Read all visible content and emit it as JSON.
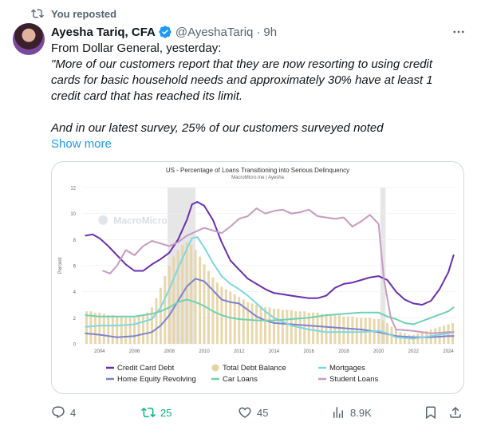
{
  "repost_banner": {
    "text": "You reposted"
  },
  "author": {
    "name": "Ayesha Tariq, CFA",
    "handle": "@AyeshaTariq",
    "separator": "·",
    "time": "9h"
  },
  "post": {
    "line1": "From Dollar General, yesterday:",
    "quote_lines": [
      "\"More of our customers report that they are now resorting to using credit",
      "cards for basic household needs and approximately 30% have at least 1",
      "credit card that has reached its limit."
    ],
    "quote_line_2": "And in our latest survey, 25% of our customers surveyed noted",
    "show_more": "Show more"
  },
  "chart_data": {
    "type": "line",
    "title": "US - Percentage of Loans Transitioning into Serious Delinquency",
    "subtitle": "MacroMicro.me | Ayesha",
    "watermark": "MacroMicro",
    "ylabel": "Percent",
    "ylim": [
      0,
      12
    ],
    "yticks": [
      "0",
      "2",
      "4",
      "6",
      "8",
      "10",
      "12"
    ],
    "xlim": [
      2003,
      2024.5
    ],
    "xticks": [
      "2004",
      "2006",
      "2008",
      "2010",
      "2012",
      "2014",
      "2016",
      "2018",
      "2020",
      "2022",
      "2024"
    ],
    "recessions": [
      [
        2007.9,
        2009.5
      ],
      [
        2020.1,
        2020.4
      ]
    ],
    "series": [
      {
        "name": "Credit Card Debt",
        "color": "#6a2fae",
        "x": [
          2003.2,
          2003.6,
          2004,
          2004.5,
          2005,
          2005.5,
          2006,
          2006.5,
          2007,
          2007.5,
          2008,
          2008.5,
          2009,
          2009.3,
          2009.6,
          2010,
          2010.5,
          2011,
          2011.5,
          2012,
          2012.5,
          2013,
          2013.5,
          2014,
          2014.5,
          2015,
          2015.5,
          2016,
          2016.5,
          2017,
          2017.5,
          2018,
          2018.5,
          2019,
          2019.5,
          2020,
          2020.5,
          2021,
          2021.5,
          2022,
          2022.5,
          2023,
          2023.5,
          2024,
          2024.3
        ],
        "y": [
          8.3,
          8.4,
          8.1,
          7.5,
          6.8,
          6.1,
          5.6,
          5.6,
          6.1,
          6.5,
          7.0,
          8.0,
          9.5,
          10.7,
          10.9,
          10.6,
          9.5,
          7.8,
          6.4,
          5.7,
          5.0,
          4.6,
          4.2,
          3.9,
          3.8,
          3.7,
          3.6,
          3.5,
          3.5,
          3.7,
          4.3,
          4.6,
          4.7,
          4.9,
          5.1,
          5.2,
          4.9,
          4.0,
          3.4,
          3.1,
          3.0,
          3.3,
          4.2,
          5.5,
          6.8
        ]
      },
      {
        "name": "Home Equity Revolving",
        "color": "#7c83cf",
        "x": [
          2003.2,
          2004,
          2005,
          2006,
          2007,
          2007.5,
          2008,
          2008.5,
          2009,
          2009.5,
          2010,
          2010.5,
          2011,
          2011.5,
          2012,
          2012.5,
          2013,
          2013.5,
          2014,
          2015,
          2016,
          2017,
          2018,
          2019,
          2020,
          2021,
          2022,
          2023,
          2024,
          2024.3
        ],
        "y": [
          0.8,
          0.7,
          0.5,
          0.6,
          0.9,
          1.4,
          2.2,
          3.3,
          4.4,
          5.0,
          4.8,
          4.1,
          3.4,
          3.2,
          3.1,
          2.6,
          2.1,
          1.8,
          1.6,
          1.5,
          1.4,
          1.3,
          1.2,
          1.1,
          0.9,
          0.6,
          0.5,
          0.5,
          0.6,
          0.6
        ]
      },
      {
        "name": "Mortgages",
        "color": "#7dd7e3",
        "x": [
          2003.2,
          2004,
          2005,
          2006,
          2007,
          2007.5,
          2008,
          2008.5,
          2009,
          2009.3,
          2009.6,
          2010,
          2010.5,
          2011,
          2011.5,
          2012,
          2012.5,
          2013,
          2013.5,
          2014,
          2015,
          2016,
          2017,
          2018,
          2019,
          2020,
          2020.5,
          2021,
          2022,
          2023,
          2024,
          2024.3
        ],
        "y": [
          1.3,
          1.4,
          1.4,
          1.5,
          1.9,
          2.8,
          4.2,
          5.8,
          7.3,
          8.1,
          8.2,
          7.4,
          6.2,
          5.2,
          4.6,
          4.2,
          3.7,
          3.1,
          2.5,
          2.0,
          1.4,
          1.1,
          0.9,
          0.9,
          0.9,
          1.0,
          0.8,
          0.5,
          0.4,
          0.6,
          0.8,
          0.9
        ]
      },
      {
        "name": "Car Loans",
        "color": "#6fd1b4",
        "x": [
          2003.2,
          2004,
          2005,
          2006,
          2007,
          2007.5,
          2008,
          2008.5,
          2009,
          2009.5,
          2010,
          2010.5,
          2011,
          2011.5,
          2012,
          2013,
          2014,
          2015,
          2016,
          2017,
          2018,
          2019,
          2020,
          2020.5,
          2021,
          2021.5,
          2022,
          2023,
          2024,
          2024.3
        ],
        "y": [
          2.2,
          2.1,
          2.1,
          2.1,
          2.3,
          2.5,
          2.8,
          3.2,
          3.4,
          3.2,
          2.9,
          2.5,
          2.2,
          2.0,
          1.9,
          1.8,
          1.8,
          1.9,
          2.0,
          2.2,
          2.3,
          2.4,
          2.4,
          2.1,
          1.9,
          1.6,
          1.5,
          2.0,
          2.5,
          2.8
        ]
      },
      {
        "name": "Student Loans",
        "color": "#c79ac1",
        "x": [
          2004.2,
          2004.6,
          2005,
          2005.5,
          2006,
          2006.5,
          2007,
          2007.5,
          2008,
          2008.5,
          2009,
          2009.5,
          2010,
          2010.5,
          2011,
          2011.5,
          2012,
          2012.5,
          2013,
          2013.5,
          2014,
          2014.5,
          2015,
          2015.5,
          2016,
          2016.5,
          2017,
          2017.5,
          2018,
          2018.5,
          2019,
          2019.5,
          2020,
          2020.3,
          2020.7,
          2021,
          2022,
          2023,
          2024,
          2024.3
        ],
        "y": [
          5.6,
          5.4,
          6.0,
          7.2,
          6.8,
          7.5,
          7.9,
          7.7,
          7.5,
          7.8,
          8.3,
          8.6,
          8.9,
          8.7,
          8.5,
          9.0,
          9.6,
          9.8,
          10.4,
          10.0,
          10.2,
          10.3,
          10.0,
          10.1,
          10.3,
          9.8,
          9.7,
          9.6,
          9.7,
          9.0,
          9.4,
          9.9,
          9.2,
          5.0,
          2.0,
          1.1,
          1.0,
          0.8,
          0.9,
          0.9
        ]
      }
    ],
    "bar_series": {
      "name": "Total Debt Balance",
      "color": "#e6d3a2",
      "x": [
        2003.25,
        2003.5,
        2003.75,
        2004,
        2004.25,
        2004.5,
        2004.75,
        2005,
        2005.25,
        2005.5,
        2005.75,
        2006,
        2006.25,
        2006.5,
        2006.75,
        2007,
        2007.25,
        2007.5,
        2007.75,
        2008,
        2008.25,
        2008.5,
        2008.75,
        2009,
        2009.25,
        2009.5,
        2009.75,
        2010,
        2010.25,
        2010.5,
        2010.75,
        2011,
        2011.25,
        2011.5,
        2011.75,
        2012,
        2012.25,
        2012.5,
        2012.75,
        2013,
        2013.25,
        2013.5,
        2013.75,
        2014,
        2014.25,
        2014.5,
        2014.75,
        2015,
        2015.25,
        2015.5,
        2015.75,
        2016,
        2016.25,
        2016.5,
        2016.75,
        2017,
        2017.25,
        2017.5,
        2017.75,
        2018,
        2018.25,
        2018.5,
        2018.75,
        2019,
        2019.25,
        2019.5,
        2019.75,
        2020,
        2020.25,
        2020.5,
        2020.75,
        2021,
        2021.25,
        2021.5,
        2021.75,
        2022,
        2022.25,
        2022.5,
        2022.75,
        2023,
        2023.25,
        2023.5,
        2023.75,
        2024,
        2024.25
      ],
      "y": [
        2.5,
        2.5,
        2.4,
        2.4,
        2.3,
        2.2,
        2.2,
        2.1,
        2.1,
        2.0,
        2.0,
        2.0,
        2.1,
        2.2,
        2.4,
        2.8,
        3.5,
        4.3,
        5.2,
        6.0,
        6.7,
        7.2,
        7.6,
        7.8,
        7.6,
        7.2,
        6.7,
        6.1,
        5.6,
        5.1,
        4.7,
        4.4,
        4.2,
        4.0,
        3.8,
        3.6,
        3.4,
        3.2,
        3.1,
        3.0,
        2.9,
        2.8,
        2.8,
        2.7,
        2.7,
        2.6,
        2.6,
        2.6,
        2.5,
        2.5,
        2.5,
        2.4,
        2.4,
        2.4,
        2.3,
        2.3,
        2.2,
        2.2,
        2.2,
        2.1,
        2.1,
        2.1,
        2.0,
        2.0,
        2.0,
        2.0,
        1.9,
        1.9,
        1.8,
        1.6,
        1.3,
        1.1,
        0.9,
        0.8,
        0.7,
        0.7,
        0.8,
        0.9,
        1.0,
        1.1,
        1.2,
        1.3,
        1.4,
        1.5,
        1.6
      ]
    }
  },
  "legend_order": [
    {
      "name": "Credit Card Debt",
      "kind": "line",
      "color": "#6a2fae"
    },
    {
      "name": "Total Debt Balance",
      "kind": "dot",
      "color": "#e6d3a2"
    },
    {
      "name": "Mortgages",
      "kind": "line",
      "color": "#7dd7e3"
    },
    {
      "name": "Home Equity Revolving",
      "kind": "line",
      "color": "#7c83cf"
    },
    {
      "name": "Car Loans",
      "kind": "line",
      "color": "#6fd1b4"
    },
    {
      "name": "Student Loans",
      "kind": "line",
      "color": "#c79ac1"
    }
  ],
  "actions": {
    "replies": "4",
    "reposts": "25",
    "likes": "45",
    "views": "8.9K"
  }
}
